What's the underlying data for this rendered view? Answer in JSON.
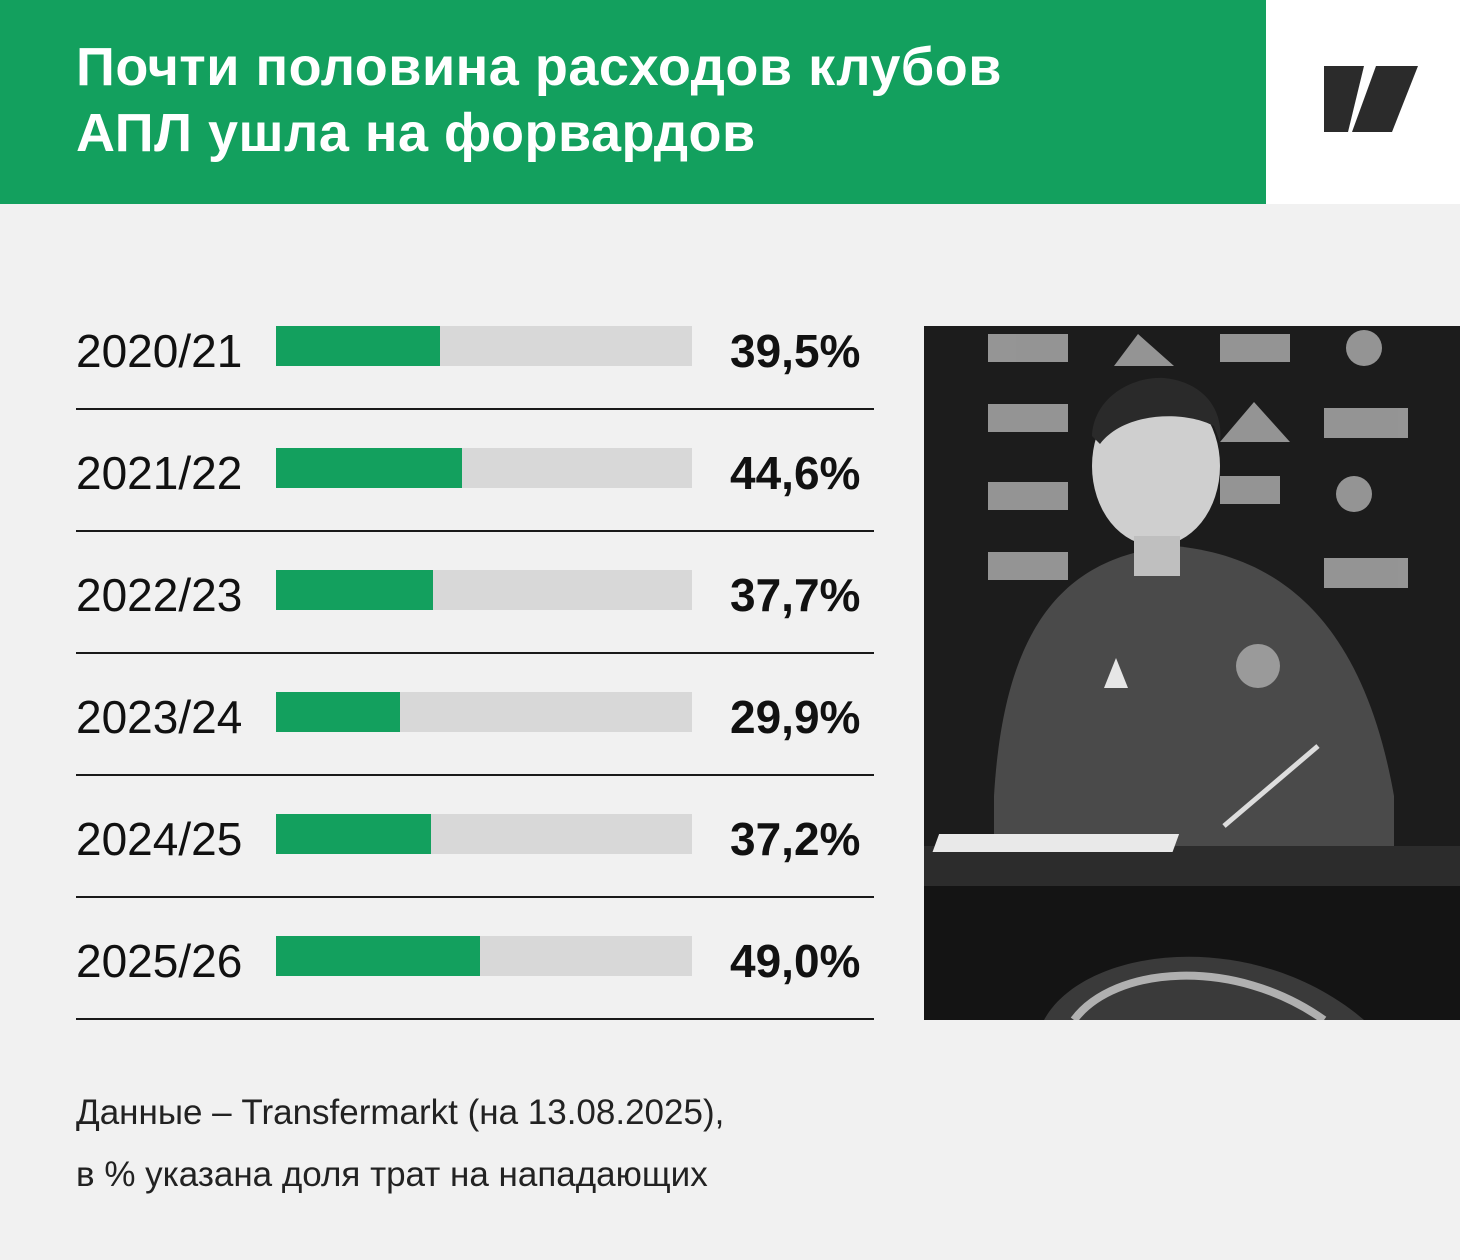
{
  "header": {
    "title": "Почти половина расходов клубов\nАПЛ ушла на форвардов"
  },
  "logo": {
    "name": "publisher-logo",
    "text": ""
  },
  "colors": {
    "accent": "#13a05e",
    "track": "#d8d8d8",
    "background": "#f1f1f1"
  },
  "chart_data": {
    "type": "bar",
    "orientation": "horizontal",
    "categories": [
      "2020/21",
      "2021/22",
      "2022/23",
      "2023/24",
      "2024/25",
      "2025/26"
    ],
    "values": [
      39.5,
      44.6,
      37.7,
      29.9,
      37.2,
      49.0
    ],
    "labels": [
      "39,5%",
      "44,6%",
      "37,7%",
      "29,9%",
      "37,2%",
      "49,0%"
    ],
    "xlim": [
      0,
      100
    ],
    "grid": false,
    "legend": "none"
  },
  "photo": {
    "description_icon": "player-signing-photo"
  },
  "footnote": {
    "line1": "Данные – Transfermarkt (на 13.08.2025),",
    "line2": "в % указана доля трат на нападающих"
  }
}
